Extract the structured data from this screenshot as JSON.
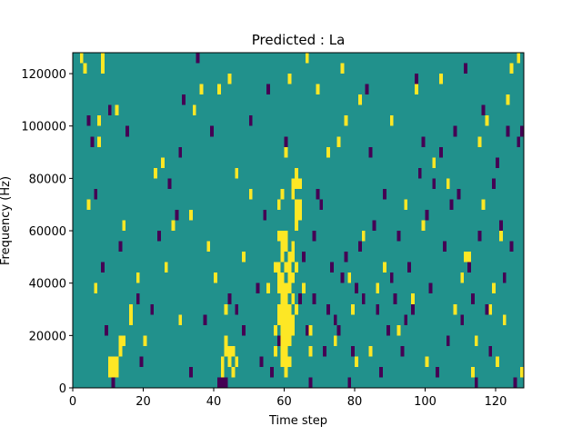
{
  "chart_data": {
    "type": "heatmap",
    "title": "Predicted : La",
    "xlabel": "Time step",
    "ylabel": "Frequency (Hz)",
    "xlim": [
      0,
      128
    ],
    "ylim": [
      0,
      128000
    ],
    "x_ticks": [
      0,
      20,
      40,
      60,
      80,
      100,
      120
    ],
    "y_ticks": [
      0,
      20000,
      40000,
      60000,
      80000,
      100000,
      120000
    ],
    "x_tick_labels": [
      "0",
      "20",
      "40",
      "60",
      "80",
      "100",
      "120"
    ],
    "y_tick_labels": [
      "0",
      "20000",
      "40000",
      "60000",
      "80000",
      "100000",
      "120000"
    ],
    "grid": false,
    "legend": "none",
    "colormap": "viridis",
    "background_value_color": "#21918c",
    "high_value_color": "#fde725",
    "low_value_color": "#440154",
    "cell_size": {
      "time_steps": 1,
      "frequency_hz": 4000
    },
    "high_cells": [
      [
        10,
        4000
      ],
      [
        10,
        8000
      ],
      [
        11,
        4000
      ],
      [
        11,
        8000
      ],
      [
        12,
        4000
      ],
      [
        12,
        8000
      ],
      [
        13,
        12000
      ],
      [
        13,
        16000
      ],
      [
        14,
        16000
      ],
      [
        16,
        24000
      ],
      [
        16,
        28000
      ],
      [
        2,
        124000
      ],
      [
        3,
        120000
      ],
      [
        4,
        68000
      ],
      [
        6,
        36000
      ],
      [
        7,
        92000
      ],
      [
        7,
        100000
      ],
      [
        8,
        124000
      ],
      [
        8,
        120000
      ],
      [
        12,
        104000
      ],
      [
        14,
        60000
      ],
      [
        18,
        40000
      ],
      [
        20,
        16000
      ],
      [
        23,
        80000
      ],
      [
        25,
        84000
      ],
      [
        26,
        44000
      ],
      [
        28,
        60000
      ],
      [
        30,
        24000
      ],
      [
        33,
        64000
      ],
      [
        34,
        104000
      ],
      [
        36,
        112000
      ],
      [
        38,
        52000
      ],
      [
        40,
        40000
      ],
      [
        41,
        112000
      ],
      [
        43,
        28000
      ],
      [
        44,
        116000
      ],
      [
        46,
        80000
      ],
      [
        48,
        48000
      ],
      [
        50,
        72000
      ],
      [
        55,
        36000
      ],
      [
        57,
        44000
      ],
      [
        58,
        56000
      ],
      [
        58,
        68000
      ],
      [
        59,
        72000
      ],
      [
        60,
        88000
      ],
      [
        61,
        116000
      ],
      [
        42,
        4000
      ],
      [
        42,
        8000
      ],
      [
        43,
        12000
      ],
      [
        43,
        16000
      ],
      [
        44,
        8000
      ],
      [
        44,
        12000
      ],
      [
        45,
        4000
      ],
      [
        45,
        12000
      ],
      [
        46,
        8000
      ],
      [
        57,
        12000
      ],
      [
        57,
        20000
      ],
      [
        58,
        24000
      ],
      [
        58,
        28000
      ],
      [
        58,
        36000
      ],
      [
        58,
        40000
      ],
      [
        58,
        44000
      ],
      [
        59,
        8000
      ],
      [
        59,
        12000
      ],
      [
        59,
        16000
      ],
      [
        59,
        20000
      ],
      [
        59,
        24000
      ],
      [
        59,
        28000
      ],
      [
        59,
        32000
      ],
      [
        59,
        36000
      ],
      [
        59,
        40000
      ],
      [
        59,
        48000
      ],
      [
        59,
        52000
      ],
      [
        59,
        56000
      ],
      [
        60,
        4000
      ],
      [
        60,
        8000
      ],
      [
        60,
        12000
      ],
      [
        60,
        16000
      ],
      [
        60,
        20000
      ],
      [
        60,
        24000
      ],
      [
        60,
        28000
      ],
      [
        60,
        32000
      ],
      [
        60,
        36000
      ],
      [
        60,
        44000
      ],
      [
        60,
        52000
      ],
      [
        60,
        56000
      ],
      [
        61,
        8000
      ],
      [
        61,
        16000
      ],
      [
        61,
        20000
      ],
      [
        61,
        24000
      ],
      [
        61,
        28000
      ],
      [
        61,
        36000
      ],
      [
        61,
        40000
      ],
      [
        61,
        44000
      ],
      [
        61,
        48000
      ],
      [
        62,
        20000
      ],
      [
        62,
        24000
      ],
      [
        62,
        32000
      ],
      [
        62,
        40000
      ],
      [
        62,
        48000
      ],
      [
        62,
        52000
      ],
      [
        62,
        72000
      ],
      [
        62,
        76000
      ],
      [
        63,
        28000
      ],
      [
        63,
        44000
      ],
      [
        63,
        60000
      ],
      [
        63,
        64000
      ],
      [
        63,
        68000
      ],
      [
        63,
        76000
      ],
      [
        63,
        80000
      ],
      [
        64,
        64000
      ],
      [
        64,
        68000
      ],
      [
        64,
        76000
      ],
      [
        65,
        36000
      ],
      [
        66,
        124000
      ],
      [
        67,
        12000
      ],
      [
        67,
        20000
      ],
      [
        69,
        112000
      ],
      [
        70,
        68000
      ],
      [
        72,
        88000
      ],
      [
        74,
        16000
      ],
      [
        75,
        92000
      ],
      [
        76,
        120000
      ],
      [
        77,
        100000
      ],
      [
        78,
        40000
      ],
      [
        79,
        28000
      ],
      [
        80,
        8000
      ],
      [
        81,
        108000
      ],
      [
        82,
        56000
      ],
      [
        84,
        12000
      ],
      [
        86,
        36000
      ],
      [
        88,
        44000
      ],
      [
        90,
        100000
      ],
      [
        92,
        20000
      ],
      [
        94,
        68000
      ],
      [
        96,
        32000
      ],
      [
        97,
        112000
      ],
      [
        99,
        60000
      ],
      [
        100,
        8000
      ],
      [
        102,
        84000
      ],
      [
        104,
        116000
      ],
      [
        106,
        76000
      ],
      [
        108,
        28000
      ],
      [
        110,
        40000
      ],
      [
        111,
        48000
      ],
      [
        112,
        48000
      ],
      [
        113,
        4000
      ],
      [
        114,
        16000
      ],
      [
        115,
        92000
      ],
      [
        116,
        68000
      ],
      [
        117,
        100000
      ],
      [
        118,
        28000
      ],
      [
        119,
        36000
      ],
      [
        120,
        8000
      ],
      [
        121,
        56000
      ],
      [
        122,
        24000
      ],
      [
        123,
        108000
      ],
      [
        124,
        120000
      ],
      [
        126,
        124000
      ],
      [
        127,
        4000
      ]
    ],
    "low_cells": [
      [
        4,
        100000
      ],
      [
        5,
        92000
      ],
      [
        6,
        72000
      ],
      [
        8,
        44000
      ],
      [
        9,
        20000
      ],
      [
        10,
        104000
      ],
      [
        11,
        0
      ],
      [
        13,
        52000
      ],
      [
        15,
        96000
      ],
      [
        18,
        32000
      ],
      [
        19,
        8000
      ],
      [
        22,
        28000
      ],
      [
        24,
        56000
      ],
      [
        27,
        76000
      ],
      [
        29,
        64000
      ],
      [
        30,
        88000
      ],
      [
        31,
        108000
      ],
      [
        33,
        4000
      ],
      [
        35,
        124000
      ],
      [
        37,
        24000
      ],
      [
        39,
        96000
      ],
      [
        41,
        0
      ],
      [
        42,
        0
      ],
      [
        43,
        0
      ],
      [
        44,
        32000
      ],
      [
        46,
        28000
      ],
      [
        48,
        20000
      ],
      [
        50,
        100000
      ],
      [
        52,
        36000
      ],
      [
        53,
        8000
      ],
      [
        54,
        64000
      ],
      [
        55,
        112000
      ],
      [
        56,
        4000
      ],
      [
        58,
        16000
      ],
      [
        60,
        92000
      ],
      [
        64,
        32000
      ],
      [
        65,
        48000
      ],
      [
        66,
        20000
      ],
      [
        67,
        0
      ],
      [
        68,
        56000
      ],
      [
        68,
        32000
      ],
      [
        69,
        72000
      ],
      [
        70,
        68000
      ],
      [
        71,
        12000
      ],
      [
        72,
        28000
      ],
      [
        73,
        44000
      ],
      [
        74,
        24000
      ],
      [
        75,
        20000
      ],
      [
        76,
        40000
      ],
      [
        77,
        48000
      ],
      [
        78,
        0
      ],
      [
        79,
        12000
      ],
      [
        80,
        36000
      ],
      [
        81,
        52000
      ],
      [
        82,
        32000
      ],
      [
        83,
        112000
      ],
      [
        84,
        88000
      ],
      [
        85,
        60000
      ],
      [
        86,
        28000
      ],
      [
        87,
        4000
      ],
      [
        88,
        72000
      ],
      [
        89,
        20000
      ],
      [
        90,
        40000
      ],
      [
        91,
        32000
      ],
      [
        92,
        56000
      ],
      [
        93,
        12000
      ],
      [
        94,
        24000
      ],
      [
        95,
        44000
      ],
      [
        96,
        28000
      ],
      [
        97,
        116000
      ],
      [
        98,
        80000
      ],
      [
        99,
        92000
      ],
      [
        100,
        64000
      ],
      [
        101,
        36000
      ],
      [
        102,
        76000
      ],
      [
        103,
        4000
      ],
      [
        104,
        88000
      ],
      [
        105,
        52000
      ],
      [
        106,
        16000
      ],
      [
        107,
        68000
      ],
      [
        108,
        96000
      ],
      [
        109,
        72000
      ],
      [
        110,
        24000
      ],
      [
        111,
        120000
      ],
      [
        112,
        44000
      ],
      [
        113,
        32000
      ],
      [
        114,
        0
      ],
      [
        115,
        56000
      ],
      [
        116,
        104000
      ],
      [
        117,
        28000
      ],
      [
        118,
        12000
      ],
      [
        119,
        76000
      ],
      [
        120,
        84000
      ],
      [
        121,
        60000
      ],
      [
        122,
        40000
      ],
      [
        123,
        96000
      ],
      [
        124,
        52000
      ],
      [
        125,
        0
      ],
      [
        126,
        92000
      ],
      [
        127,
        96000
      ]
    ]
  }
}
